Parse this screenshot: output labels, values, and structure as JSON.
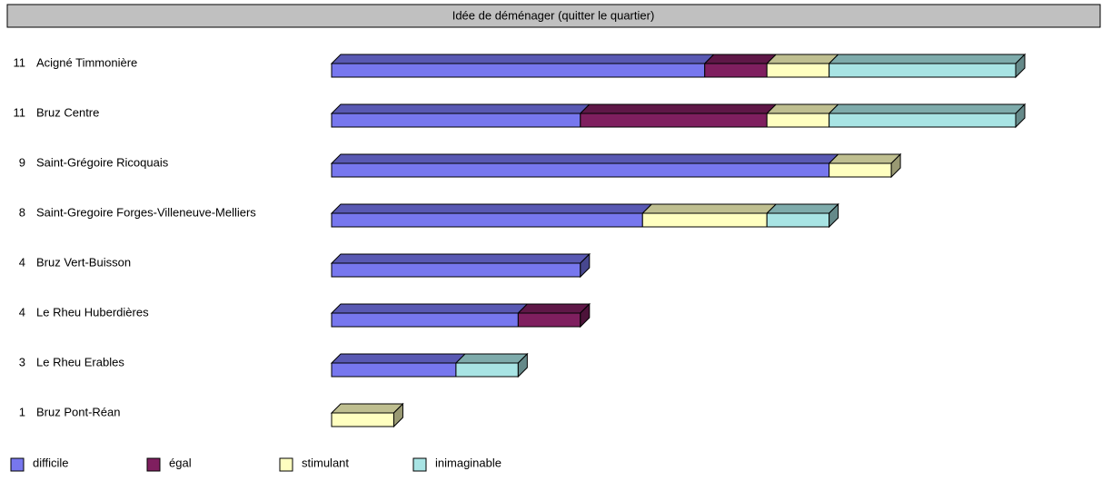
{
  "chart_data": {
    "type": "bar3d_stacked_horizontal",
    "header": "Idée de déménager (quitter le quartier)",
    "totals": [
      11,
      11,
      9,
      8,
      4,
      4,
      3,
      1
    ],
    "categories": [
      "Acigné Timmonière",
      "Bruz Centre",
      "Saint-Grégoire Ricoquais",
      "Saint-Gregoire Forges-Villeneuve-Melliers",
      "Bruz Vert-Buisson",
      "Le Rheu Huberdières",
      "Le Rheu Erables",
      "Bruz Pont-Réan"
    ],
    "series": [
      {
        "name": "difficile",
        "color": "#7777ee",
        "values": [
          6,
          4,
          8,
          5,
          4,
          3,
          2,
          0
        ]
      },
      {
        "name": "égal",
        "color": "#7f1f5f",
        "values": [
          1,
          3,
          0,
          0,
          0,
          1,
          0,
          0
        ]
      },
      {
        "name": "stimulant",
        "color": "#ffffc0",
        "values": [
          1,
          1,
          1,
          2,
          0,
          0,
          0,
          1
        ]
      },
      {
        "name": "inimaginable",
        "color": "#a8e4e4",
        "values": [
          3,
          3,
          0,
          1,
          0,
          0,
          1,
          0
        ]
      }
    ]
  }
}
